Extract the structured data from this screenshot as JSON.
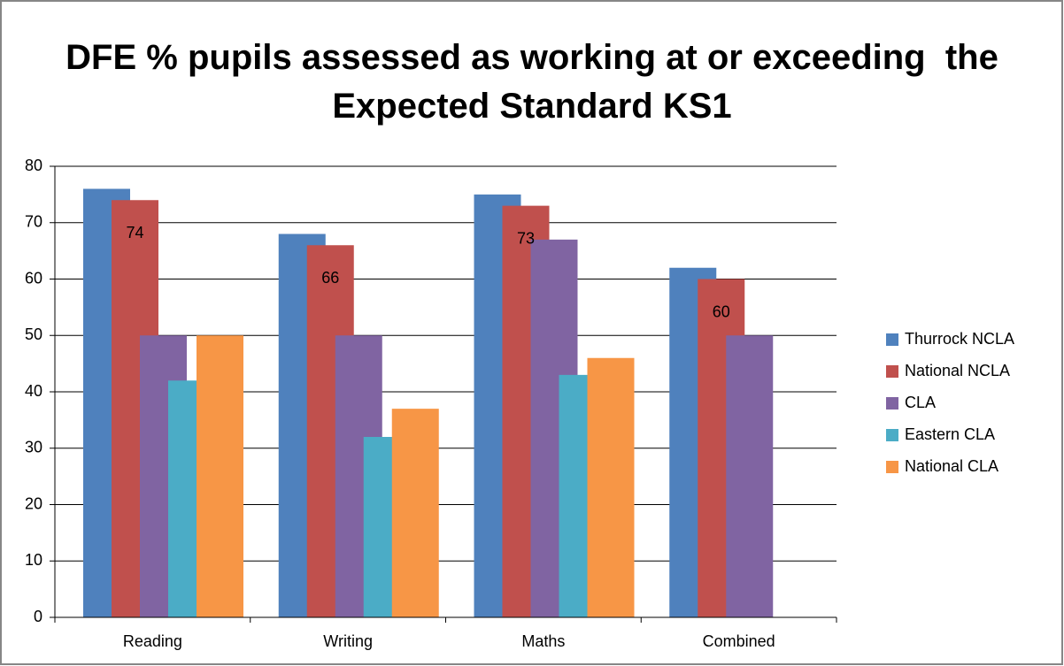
{
  "chart_data": {
    "type": "bar",
    "title": "DFE % pupils assessed as working at or exceeding  the Expected Standard KS1",
    "categories": [
      "Reading",
      "Writing",
      "Maths",
      "Combined"
    ],
    "series": [
      {
        "name": "Thurrock NCLA",
        "color": "#4f81bd",
        "values": [
          76,
          68,
          75,
          62
        ]
      },
      {
        "name": "National NCLA",
        "color": "#c0504d",
        "values": [
          74,
          66,
          73,
          60
        ],
        "data_labels": true
      },
      {
        "name": "CLA",
        "color": "#8064a2",
        "values": [
          50,
          50,
          67,
          50
        ]
      },
      {
        "name": "Eastern CLA",
        "color": "#4bacc6",
        "values": [
          42,
          32,
          43,
          null
        ]
      },
      {
        "name": "National CLA",
        "color": "#f79646",
        "values": [
          50,
          37,
          46,
          null
        ]
      }
    ],
    "ylim": [
      0,
      80
    ],
    "yticks": [
      0,
      10,
      20,
      30,
      40,
      50,
      60,
      70,
      80
    ],
    "grid": true,
    "legend": "right"
  }
}
